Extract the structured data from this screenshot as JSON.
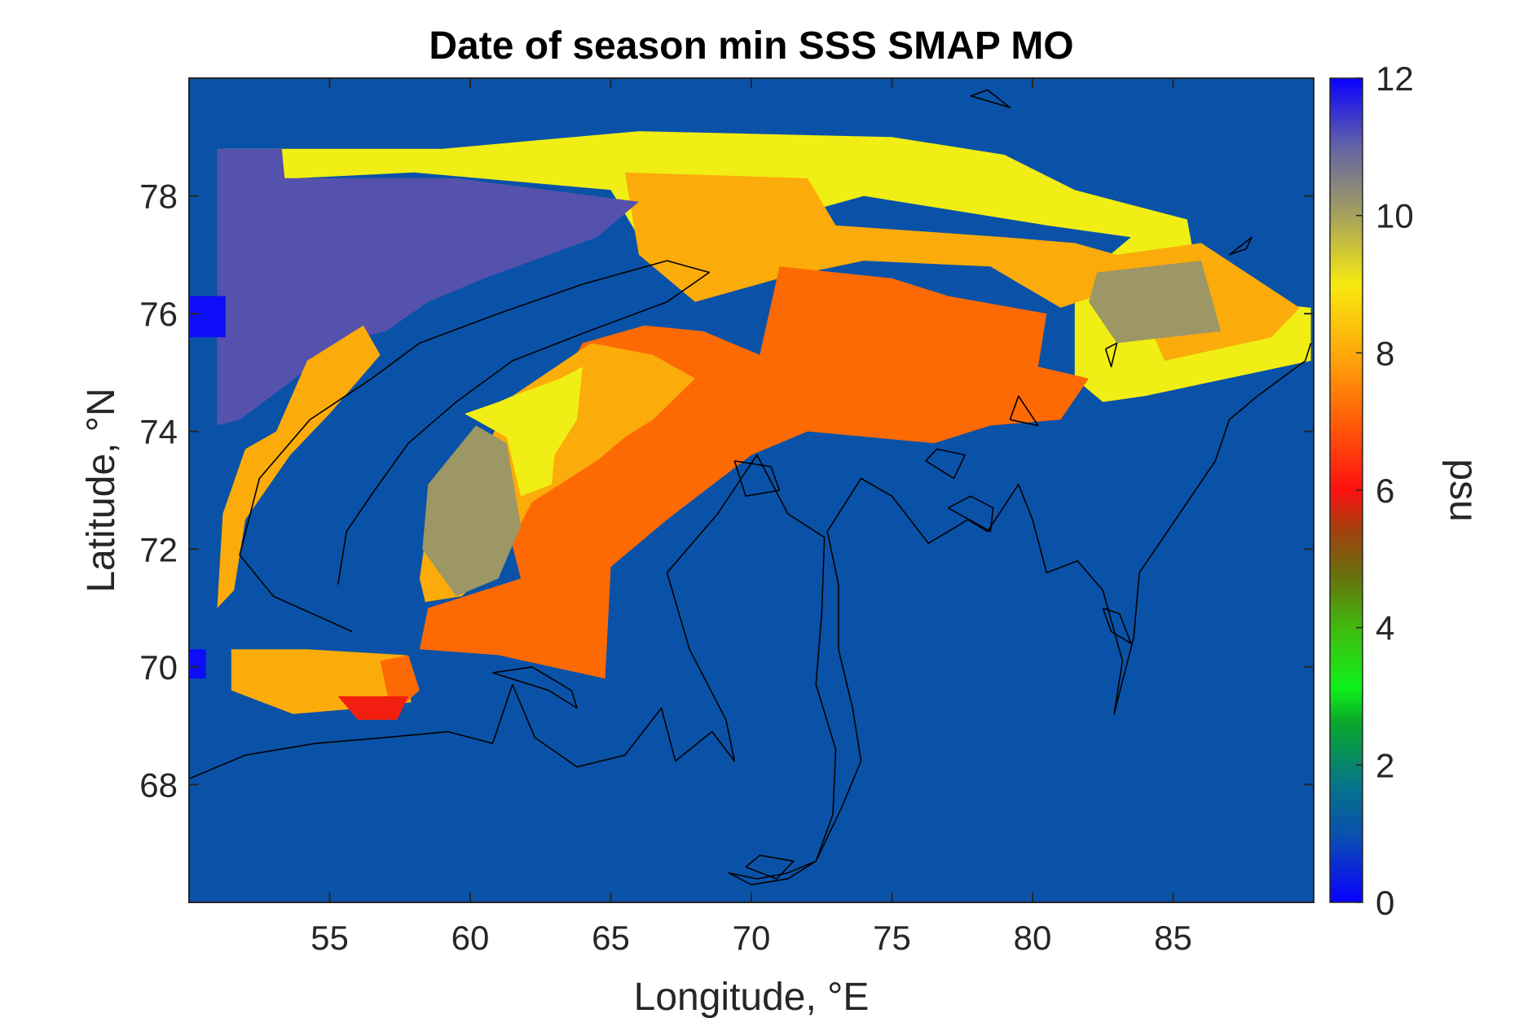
{
  "chart_data": {
    "type": "heatmap",
    "title": "Date of season min SSS SMAP MO",
    "xlabel": "Longitude, °E",
    "ylabel": "Latitude, °N",
    "colorbar_label": "psu",
    "xlim": [
      50,
      90
    ],
    "ylim": [
      66,
      80
    ],
    "xticks": [
      55,
      60,
      65,
      70,
      75,
      80,
      85
    ],
    "yticks": [
      68,
      70,
      72,
      74,
      76,
      78
    ],
    "clim": [
      0,
      12
    ],
    "cticks": [
      0,
      2,
      4,
      6,
      8,
      10,
      12
    ],
    "background_value": 1,
    "colors": {
      "ocean": "#0a52a8",
      "yellow": "#f0ee14",
      "light_orange": "#fbab0a",
      "dark_orange": "#fd6a04",
      "red": "#f21e10",
      "purple": "#5552ad",
      "olive": "#9c9765",
      "blue": "#0d0df7"
    },
    "regions": [
      {
        "value": 9,
        "color_key": "yellow",
        "points": [
          [
            51.2,
            78.8
          ],
          [
            59,
            78.8
          ],
          [
            66,
            79.1
          ],
          [
            75,
            79
          ],
          [
            79,
            78.7
          ],
          [
            81.5,
            78.1
          ],
          [
            85.5,
            77.6
          ],
          [
            86,
            76.3
          ],
          [
            89.9,
            76.1
          ],
          [
            89.9,
            75.2
          ],
          [
            84,
            74.6
          ],
          [
            82.5,
            74.5
          ],
          [
            81.5,
            74.9
          ],
          [
            81.5,
            76.5
          ],
          [
            83.5,
            77.3
          ],
          [
            80.5,
            77.5
          ],
          [
            74,
            78
          ],
          [
            68,
            77.2
          ],
          [
            66,
            77.3
          ],
          [
            65,
            78.1
          ],
          [
            58,
            78.4
          ],
          [
            53.8,
            78.3
          ],
          [
            51.2,
            78.3
          ]
        ]
      },
      {
        "value": 8,
        "color_key": "light_orange",
        "points": [
          [
            65.5,
            78.4
          ],
          [
            72,
            78.3
          ],
          [
            73,
            77.5
          ],
          [
            79,
            77.3
          ],
          [
            81.5,
            77.2
          ],
          [
            83,
            77
          ],
          [
            86,
            77.2
          ],
          [
            89.5,
            76.1
          ],
          [
            88.5,
            75.6
          ],
          [
            84.7,
            75.2
          ],
          [
            83.5,
            76.5
          ],
          [
            81,
            76.1
          ],
          [
            78.5,
            76.8
          ],
          [
            74,
            76.9
          ],
          [
            71,
            76.6
          ],
          [
            68,
            76.2
          ],
          [
            66,
            77
          ]
        ]
      },
      {
        "value": 7,
        "color_key": "dark_orange",
        "points": [
          [
            70.3,
            75.3
          ],
          [
            71,
            76.8
          ],
          [
            75,
            76.6
          ],
          [
            77,
            76.3
          ],
          [
            80.5,
            76
          ],
          [
            80.2,
            75.1
          ],
          [
            82,
            74.9
          ],
          [
            81,
            74.2
          ],
          [
            78.5,
            74.1
          ],
          [
            76.5,
            73.8
          ],
          [
            72,
            74
          ],
          [
            70,
            73.6
          ],
          [
            67,
            72.5
          ],
          [
            65,
            71.7
          ],
          [
            64.8,
            69.8
          ],
          [
            61,
            70.2
          ],
          [
            58.2,
            70.3
          ],
          [
            58.5,
            71
          ],
          [
            61.8,
            71.5
          ],
          [
            61,
            73
          ],
          [
            64,
            75.5
          ],
          [
            66.2,
            75.8
          ],
          [
            68.3,
            75.7
          ]
        ]
      },
      {
        "value": 8,
        "color_key": "light_orange",
        "points": [
          [
            62.2,
            72.8
          ],
          [
            64.5,
            73.5
          ],
          [
            65.5,
            73.9
          ],
          [
            66.5,
            74.2
          ],
          [
            68,
            74.9
          ],
          [
            66.5,
            75.3
          ],
          [
            64.3,
            75.5
          ],
          [
            61.5,
            74.6
          ],
          [
            60,
            73.2
          ],
          [
            58.5,
            72.5
          ],
          [
            58.2,
            71.5
          ],
          [
            58.4,
            71.1
          ],
          [
            59.7,
            71.2
          ],
          [
            61.2,
            71.9
          ]
        ]
      },
      {
        "value": 9,
        "color_key": "yellow",
        "points": [
          [
            61.5,
            74.6
          ],
          [
            63.2,
            74.9
          ],
          [
            64,
            75.1
          ],
          [
            63.8,
            74.2
          ],
          [
            63,
            73.6
          ],
          [
            62.9,
            73.1
          ],
          [
            61.8,
            72.9
          ],
          [
            61.3,
            73.9
          ],
          [
            59.8,
            74.3
          ],
          [
            61,
            74.5
          ]
        ]
      },
      {
        "value": 10,
        "color_key": "olive",
        "points": [
          [
            58.3,
            72
          ],
          [
            59.5,
            71.2
          ],
          [
            61,
            71.5
          ],
          [
            61.8,
            72.4
          ],
          [
            61.3,
            73.8
          ],
          [
            60.2,
            74.1
          ],
          [
            58.5,
            73.1
          ]
        ]
      },
      {
        "value": 11,
        "color_key": "purple",
        "points": [
          [
            51,
            78.8
          ],
          [
            53.3,
            78.8
          ],
          [
            53.4,
            78.3
          ],
          [
            59.5,
            78.3
          ],
          [
            66,
            77.9
          ],
          [
            64.5,
            77.3
          ],
          [
            60.5,
            76.6
          ],
          [
            58.5,
            76.2
          ],
          [
            57,
            75.7
          ],
          [
            55.3,
            75.5
          ],
          [
            53.5,
            74.8
          ],
          [
            51.8,
            74.2
          ],
          [
            51,
            74.1
          ]
        ]
      },
      {
        "value": 10,
        "color_key": "olive",
        "points": [
          [
            82.3,
            76.7
          ],
          [
            86,
            76.9
          ],
          [
            86.7,
            75.7
          ],
          [
            83,
            75.5
          ],
          [
            82,
            76.2
          ]
        ]
      },
      {
        "value": 8,
        "color_key": "light_orange",
        "points": [
          [
            51,
            71
          ],
          [
            51.2,
            72.6
          ],
          [
            52,
            73.7
          ],
          [
            53.1,
            74
          ],
          [
            54.2,
            75.2
          ],
          [
            56.2,
            75.8
          ],
          [
            56.8,
            75.3
          ],
          [
            55,
            74.3
          ],
          [
            53.6,
            73.6
          ],
          [
            52,
            72.5
          ],
          [
            51.6,
            71.3
          ]
        ]
      },
      {
        "value": 8,
        "color_key": "light_orange",
        "points": [
          [
            51.5,
            70.3
          ],
          [
            54.2,
            70.3
          ],
          [
            57.7,
            70.2
          ],
          [
            57.9,
            69.4
          ],
          [
            56.2,
            69.3
          ],
          [
            53.7,
            69.2
          ],
          [
            51.5,
            69.6
          ]
        ]
      },
      {
        "value": 7,
        "color_key": "dark_orange",
        "points": [
          [
            56.8,
            70.1
          ],
          [
            57.8,
            70.2
          ],
          [
            58.2,
            69.6
          ],
          [
            57.2,
            69.2
          ]
        ]
      },
      {
        "value": 6,
        "color_key": "red",
        "points": [
          [
            55.3,
            69.5
          ],
          [
            57.8,
            69.5
          ],
          [
            57.4,
            69.1
          ],
          [
            56,
            69.1
          ]
        ]
      },
      {
        "value": 12,
        "color_key": "blue",
        "points": [
          [
            50,
            76.3
          ],
          [
            51.3,
            76.3
          ],
          [
            51.3,
            75.6
          ],
          [
            50,
            75.6
          ]
        ]
      },
      {
        "value": 12,
        "color_key": "blue",
        "points": [
          [
            50,
            70.3
          ],
          [
            50.6,
            70.3
          ],
          [
            50.6,
            69.8
          ],
          [
            50,
            69.8
          ]
        ]
      }
    ],
    "coastlines": [
      [
        [
          55.8,
          70.6
        ],
        [
          53,
          71.2
        ],
        [
          51.8,
          71.9
        ],
        [
          52.5,
          73.2
        ],
        [
          54.3,
          74.2
        ],
        [
          56.5,
          74.9
        ],
        [
          58.2,
          75.5
        ],
        [
          61,
          76
        ],
        [
          64,
          76.5
        ],
        [
          67,
          76.9
        ],
        [
          68.5,
          76.7
        ],
        [
          67,
          76.2
        ],
        [
          64.2,
          75.7
        ],
        [
          61.5,
          75.2
        ],
        [
          59.5,
          74.5
        ],
        [
          57.8,
          73.8
        ],
        [
          56.6,
          73
        ],
        [
          55.6,
          72.3
        ],
        [
          55.3,
          71.4
        ]
      ],
      [
        [
          50,
          68.1
        ],
        [
          52,
          68.5
        ],
        [
          54.5,
          68.7
        ],
        [
          57,
          68.8
        ],
        [
          59.2,
          68.9
        ],
        [
          60.8,
          68.7
        ],
        [
          61.5,
          69.7
        ],
        [
          62.3,
          68.8
        ],
        [
          63.8,
          68.3
        ],
        [
          65.5,
          68.5
        ],
        [
          66.8,
          69.3
        ],
        [
          67.3,
          68.4
        ],
        [
          68.6,
          68.9
        ],
        [
          69.4,
          68.4
        ],
        [
          69.1,
          69.1
        ],
        [
          67.8,
          70.3
        ],
        [
          67,
          71.6
        ],
        [
          68.8,
          72.6
        ],
        [
          70.2,
          73.6
        ],
        [
          71.3,
          72.6
        ],
        [
          72.6,
          72.2
        ],
        [
          72.5,
          70.9
        ],
        [
          72.3,
          69.7
        ],
        [
          73,
          68.6
        ],
        [
          72.9,
          67.5
        ],
        [
          72.3,
          66.7
        ],
        [
          71.3,
          66.5
        ],
        [
          70.2,
          66.4
        ],
        [
          69.2,
          66.5
        ],
        [
          70,
          66.3
        ],
        [
          71.3,
          66.4
        ],
        [
          72.3,
          66.7
        ],
        [
          73.2,
          67.6
        ],
        [
          73.9,
          68.4
        ],
        [
          73.6,
          69.3
        ],
        [
          73.1,
          70.3
        ],
        [
          73.1,
          71.4
        ],
        [
          72.7,
          72.3
        ],
        [
          73.9,
          73.2
        ],
        [
          75,
          72.9
        ],
        [
          76.3,
          72.1
        ],
        [
          77.7,
          72.5
        ],
        [
          78.4,
          72.3
        ],
        [
          79.5,
          73.1
        ],
        [
          80,
          72.5
        ],
        [
          80.5,
          71.6
        ],
        [
          81.6,
          71.8
        ],
        [
          82.5,
          71.3
        ],
        [
          83.2,
          70.1
        ],
        [
          82.9,
          69.2
        ],
        [
          83.6,
          70.5
        ],
        [
          83.8,
          71.6
        ],
        [
          84.8,
          72.3
        ],
        [
          86.5,
          73.5
        ],
        [
          87,
          74.2
        ],
        [
          88,
          74.6
        ],
        [
          89.7,
          75.2
        ],
        [
          89.9,
          75.5
        ]
      ],
      [
        [
          60.8,
          69.9
        ],
        [
          62.8,
          69.6
        ],
        [
          63.8,
          69.3
        ],
        [
          63.6,
          69.6
        ],
        [
          62.2,
          70
        ],
        [
          60.8,
          69.9
        ]
      ],
      [
        [
          69.4,
          73.5
        ],
        [
          70.7,
          73.4
        ],
        [
          71,
          73
        ],
        [
          69.8,
          72.9
        ],
        [
          69.4,
          73.5
        ]
      ],
      [
        [
          77,
          72.7
        ],
        [
          78.5,
          72.3
        ],
        [
          78.6,
          72.7
        ],
        [
          77.8,
          72.9
        ],
        [
          77,
          72.7
        ]
      ],
      [
        [
          76.2,
          73.5
        ],
        [
          77.2,
          73.2
        ],
        [
          77.6,
          73.6
        ],
        [
          76.6,
          73.7
        ],
        [
          76.2,
          73.5
        ]
      ],
      [
        [
          79.2,
          74.2
        ],
        [
          80.2,
          74.1
        ],
        [
          79.5,
          74.6
        ],
        [
          79.2,
          74.2
        ]
      ],
      [
        [
          82.5,
          71
        ],
        [
          83.1,
          70.9
        ],
        [
          83.5,
          70.4
        ],
        [
          82.8,
          70.6
        ],
        [
          82.5,
          71
        ]
      ],
      [
        [
          82.6,
          75.4
        ],
        [
          82.8,
          75.1
        ],
        [
          83,
          75.5
        ],
        [
          82.6,
          75.4
        ]
      ],
      [
        [
          69.8,
          66.6
        ],
        [
          70.9,
          66.4
        ],
        [
          71.5,
          66.7
        ],
        [
          70.3,
          66.8
        ],
        [
          69.8,
          66.6
        ]
      ],
      [
        [
          77.8,
          79.7
        ],
        [
          79.2,
          79.5
        ],
        [
          78.4,
          79.8
        ],
        [
          77.8,
          79.7
        ]
      ],
      [
        [
          87,
          77
        ],
        [
          87.8,
          77.3
        ],
        [
          87.6,
          77.1
        ],
        [
          87,
          77
        ]
      ]
    ]
  }
}
